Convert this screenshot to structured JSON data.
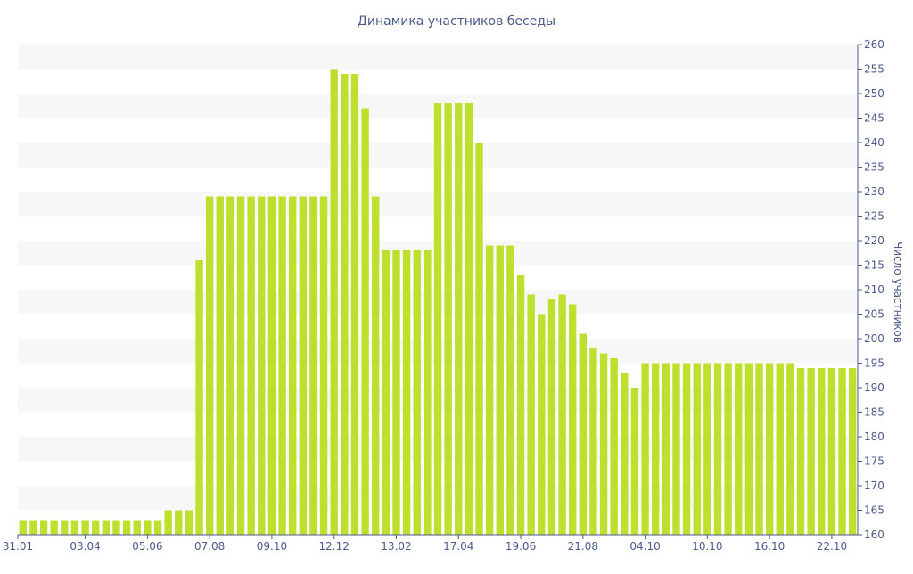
{
  "chart_data": {
    "type": "bar",
    "title": "Динамика участников беседы",
    "xlabel": "",
    "ylabel": "Число участников",
    "ylim": [
      160,
      260
    ],
    "yticks": [
      160,
      165,
      170,
      175,
      180,
      185,
      190,
      195,
      200,
      205,
      210,
      215,
      220,
      225,
      230,
      235,
      240,
      245,
      250,
      255,
      260
    ],
    "y_axis_position": "right",
    "grid": "alternating horizontal bands",
    "legend": "none",
    "bar_color": "#bddf2e",
    "band_color": "#f7f7f7",
    "axis_color": "#4a5b8c",
    "xtick_labels": [
      {
        "index": 0,
        "label": "31.01"
      },
      {
        "index": 6,
        "label": "03.04"
      },
      {
        "index": 12,
        "label": "05.06"
      },
      {
        "index": 18,
        "label": "07.08"
      },
      {
        "index": 24,
        "label": "09.10"
      },
      {
        "index": 30,
        "label": "12.12"
      },
      {
        "index": 36,
        "label": "13.02"
      },
      {
        "index": 42,
        "label": "17.04"
      },
      {
        "index": 48,
        "label": "19.06"
      },
      {
        "index": 54,
        "label": "21.08"
      },
      {
        "index": 60,
        "label": "04.10"
      },
      {
        "index": 66,
        "label": "10.10"
      },
      {
        "index": 72,
        "label": "16.10"
      },
      {
        "index": 78,
        "label": "22.10"
      }
    ],
    "values": [
      163,
      163,
      163,
      163,
      163,
      163,
      163,
      163,
      163,
      163,
      163,
      163,
      163,
      163,
      165,
      165,
      165,
      216,
      229,
      229,
      229,
      229,
      229,
      229,
      229,
      229,
      229,
      229,
      229,
      229,
      255,
      254,
      254,
      247,
      229,
      218,
      218,
      218,
      218,
      218,
      248,
      248,
      248,
      248,
      240,
      219,
      219,
      219,
      213,
      209,
      205,
      208,
      209,
      207,
      201,
      198,
      197,
      196,
      193,
      190,
      195,
      195,
      195,
      195,
      195,
      195,
      195,
      195,
      195,
      195,
      195,
      195,
      195,
      195,
      195,
      194,
      194,
      194,
      194,
      194,
      194
    ]
  }
}
